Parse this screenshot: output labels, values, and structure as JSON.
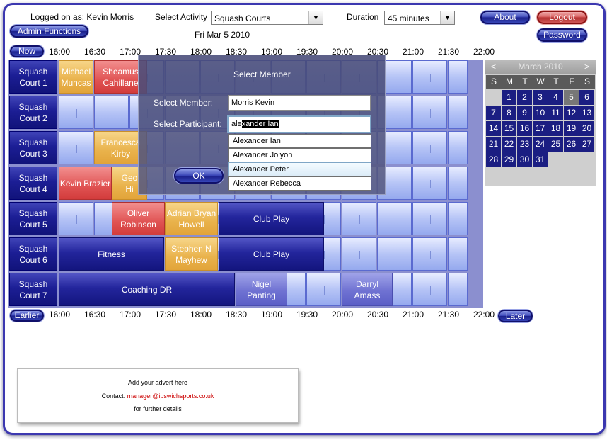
{
  "header": {
    "logged_on": "Logged on as: Kevin Morris",
    "select_activity_label": "Select Activity",
    "activity_value": "Squash Courts",
    "duration_label": "Duration",
    "duration_value": "45 minutes",
    "date": "Fri Mar 5 2010",
    "admin_button": "Admin Functions",
    "about_button": "About",
    "logout_button": "Logout",
    "password_button": "Password",
    "now_button": "Now",
    "earlier_button": "Earlier",
    "later_button": "Later"
  },
  "times": [
    "16:00",
    "16:30",
    "17:00",
    "17:30",
    "18:00",
    "18:30",
    "19:00",
    "19:30",
    "20:00",
    "20:30",
    "21:00",
    "21:30",
    "22:00"
  ],
  "courts": [
    {
      "line1": "Squash",
      "line2": "Court 1"
    },
    {
      "line1": "Squash",
      "line2": "Court 2"
    },
    {
      "line1": "Squash",
      "line2": "Court 3"
    },
    {
      "line1": "Squash",
      "line2": "Court 4"
    },
    {
      "line1": "Squash",
      "line2": "Court 5"
    },
    {
      "line1": "Squash",
      "line2": "Court 6"
    },
    {
      "line1": "Squash",
      "line2": "Court 7"
    }
  ],
  "bookings": {
    "c1a": {
      "l1": "Michael",
      "l2": "Muncas"
    },
    "c1b": {
      "l1": "Sheamus",
      "l2": "Cahillane"
    },
    "c3a": {
      "l1": "Francesca",
      "l2": "Kirby"
    },
    "c4a": {
      "l1": "Kevin Brazier",
      "l2": ""
    },
    "c4b": {
      "l1": "Geo",
      "l2": "Hi"
    },
    "c5a": {
      "l1": "Oliver",
      "l2": "Robinson"
    },
    "c5b": {
      "l1": "Adrian Bryan",
      "l2": "Howell"
    },
    "c5c": {
      "l1": "Club Play",
      "l2": ""
    },
    "c6a": {
      "l1": "Fitness",
      "l2": ""
    },
    "c6b": {
      "l1": "Stephen N",
      "l2": "Mayhew"
    },
    "c6c": {
      "l1": "Club Play",
      "l2": ""
    },
    "c7a": {
      "l1": "Coaching DR",
      "l2": ""
    },
    "c7b": {
      "l1": "Nigel",
      "l2": "Panting"
    },
    "c7c": {
      "l1": "Darryl",
      "l2": "Amass"
    }
  },
  "calendar": {
    "title": "March 2010",
    "prev": "<",
    "next": ">",
    "dow": [
      "S",
      "M",
      "T",
      "W",
      "T",
      "F",
      "S"
    ],
    "weeks": [
      [
        "",
        "1",
        "2",
        "3",
        "4",
        "5",
        "6"
      ],
      [
        "7",
        "8",
        "9",
        "10",
        "11",
        "12",
        "13"
      ],
      [
        "14",
        "15",
        "16",
        "17",
        "18",
        "19",
        "20"
      ],
      [
        "21",
        "22",
        "23",
        "24",
        "25",
        "26",
        "27"
      ],
      [
        "28",
        "29",
        "30",
        "31",
        "",
        "",
        ""
      ]
    ],
    "selected": "5"
  },
  "dialog": {
    "title": "Select Member",
    "member_label": "Select Member:",
    "member_value": "Morris Kevin",
    "participant_label": "Select Participant:",
    "participant_typed": "ale",
    "participant_highlight": "xander Ian",
    "ok_button": "OK",
    "options": [
      "Alexander Ian",
      "Alexander Jolyon",
      "Alexander Peter",
      "Alexander Rebecca"
    ]
  },
  "advert": {
    "line1": "Add your advert here",
    "contact_label": "Contact: ",
    "email": "manager@ipswichsports.co.uk",
    "line3": "for further details"
  },
  "colors": {
    "navy": "#1b1e82",
    "accent": "#3c38b0",
    "link": "#cc0000"
  }
}
